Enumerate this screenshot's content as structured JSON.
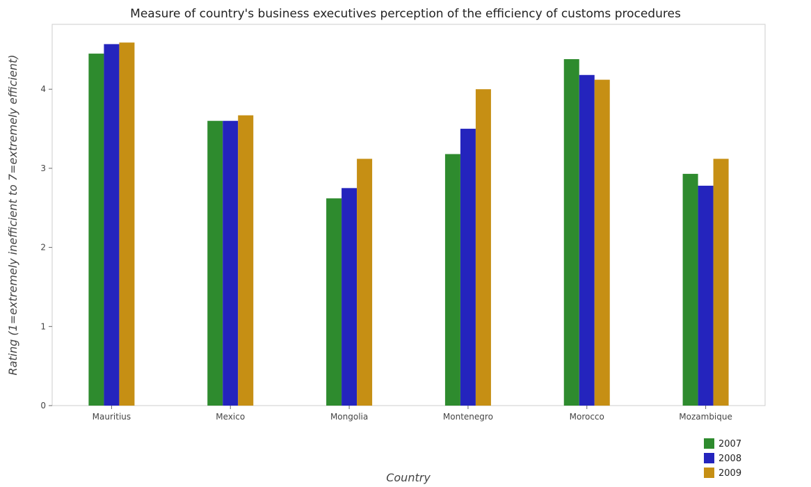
{
  "chart_data": {
    "type": "bar",
    "title": "Measure of country's business executives perception of the efficiency of customs procedures",
    "xlabel": "Country",
    "ylabel": "Rating (1=extremely inefficient to 7=extremely efficient)",
    "categories": [
      "Mauritius",
      "Mexico",
      "Mongolia",
      "Montenegro",
      "Morocco",
      "Mozambique"
    ],
    "series": [
      {
        "name": "2007",
        "color": "#2e8b2e",
        "values": [
          4.45,
          3.6,
          2.62,
          3.18,
          4.38,
          2.93
        ]
      },
      {
        "name": "2008",
        "color": "#2424bd",
        "values": [
          4.57,
          3.6,
          2.75,
          3.5,
          4.18,
          2.78
        ]
      },
      {
        "name": "2009",
        "color": "#c68f14",
        "values": [
          4.59,
          3.67,
          3.12,
          4.0,
          4.12,
          3.12
        ]
      }
    ],
    "ylim": [
      0,
      4.82
    ],
    "yticks": [
      0,
      1,
      2,
      3,
      4
    ],
    "grid": false,
    "legend_position": "bottom-right"
  }
}
